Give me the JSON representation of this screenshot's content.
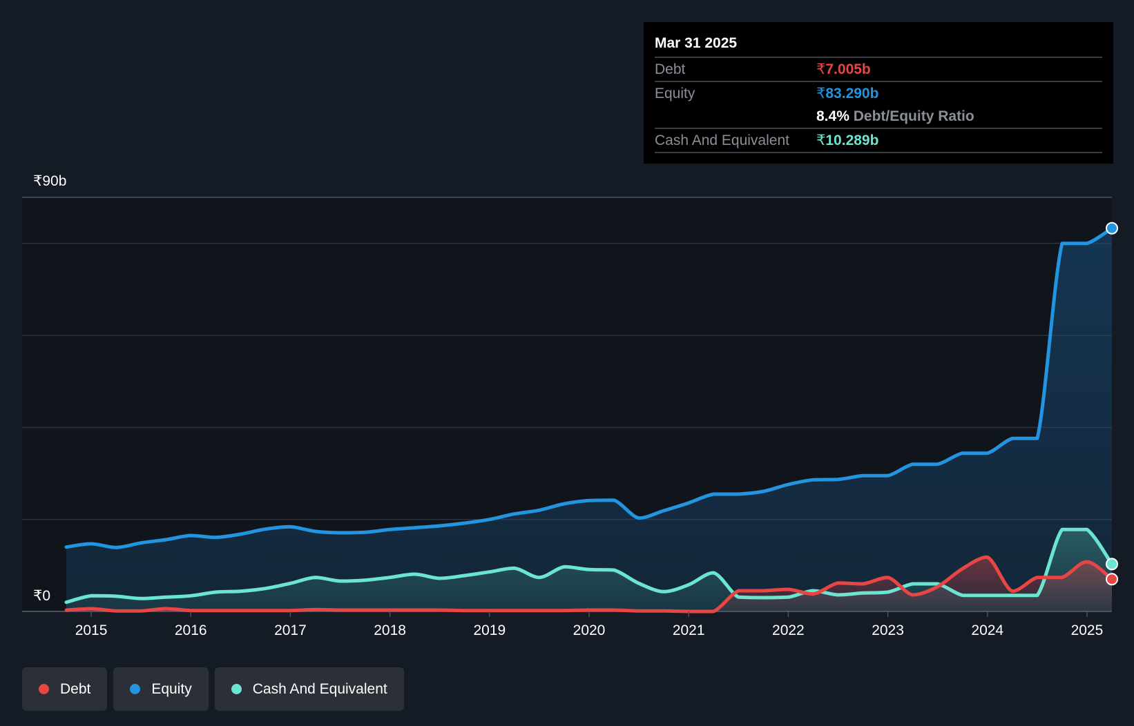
{
  "tooltip": {
    "date": "Mar 31 2025",
    "debt_label": "Debt",
    "debt_symbol": "₹",
    "debt_value": "7.005b",
    "equity_label": "Equity",
    "equity_symbol": "₹",
    "equity_value": "83.290b",
    "ratio_value": "8.4%",
    "ratio_label": "Debt/Equity Ratio",
    "cash_label": "Cash And Equivalent",
    "cash_symbol": "₹",
    "cash_value": "10.289b"
  },
  "legend": {
    "debt": "Debt",
    "equity": "Equity",
    "cash": "Cash And Equivalent"
  },
  "colors": {
    "debt": "#e84545",
    "equity": "#2394df",
    "cash": "#6ce5d0",
    "background": "#151b24",
    "grid": "#2e3540"
  },
  "chart_data": {
    "type": "area",
    "title": "",
    "xlabel": "",
    "ylabel": "",
    "y_axis_labels": {
      "top": "₹90b",
      "bottom": "₹0"
    },
    "ylim": [
      0,
      90
    ],
    "xlim": [
      2014.75,
      2025.25
    ],
    "x_ticks": [
      2015,
      2016,
      2017,
      2018,
      2019,
      2020,
      2021,
      2022,
      2023,
      2024,
      2025
    ],
    "x_tick_labels": [
      "2015",
      "2016",
      "2017",
      "2018",
      "2019",
      "2020",
      "2021",
      "2022",
      "2023",
      "2024",
      "2025"
    ],
    "series": [
      {
        "name": "Equity",
        "color_key": "equity",
        "x": [
          2014.75,
          2015.0,
          2015.25,
          2015.5,
          2015.75,
          2016.0,
          2016.25,
          2016.5,
          2016.75,
          2017.0,
          2017.25,
          2017.5,
          2017.75,
          2018.0,
          2018.25,
          2018.5,
          2018.75,
          2019.0,
          2019.25,
          2019.5,
          2019.75,
          2020.0,
          2020.25,
          2020.5,
          2020.75,
          2021.0,
          2021.25,
          2021.5,
          2021.75,
          2022.0,
          2022.25,
          2022.5,
          2022.75,
          2023.0,
          2023.25,
          2023.5,
          2023.75,
          2024.0,
          2024.25,
          2024.5,
          2024.75,
          2025.0,
          2025.25
        ],
        "values": [
          14.0,
          14.7,
          13.9,
          14.9,
          15.6,
          16.5,
          16.1,
          16.8,
          17.9,
          18.4,
          17.4,
          17.1,
          17.2,
          17.8,
          18.2,
          18.6,
          19.2,
          20.0,
          21.2,
          22.0,
          23.4,
          24.1,
          24.2,
          20.3,
          21.9,
          23.6,
          25.5,
          25.5,
          26.1,
          27.6,
          28.6,
          28.7,
          29.5,
          29.5,
          32.0,
          32.0,
          34.4,
          34.4,
          37.6,
          37.6,
          80.0,
          80.0,
          83.29
        ]
      },
      {
        "name": "Cash And Equivalent",
        "color_key": "cash",
        "x": [
          2014.75,
          2015.0,
          2015.25,
          2015.5,
          2015.75,
          2016.0,
          2016.25,
          2016.5,
          2016.75,
          2017.0,
          2017.25,
          2017.5,
          2017.75,
          2018.0,
          2018.25,
          2018.5,
          2018.75,
          2019.0,
          2019.25,
          2019.5,
          2019.75,
          2020.0,
          2020.25,
          2020.5,
          2020.75,
          2021.0,
          2021.25,
          2021.5,
          2021.75,
          2022.0,
          2022.25,
          2022.5,
          2022.75,
          2023.0,
          2023.25,
          2023.5,
          2023.75,
          2024.0,
          2024.25,
          2024.5,
          2024.75,
          2025.0,
          2025.25
        ],
        "values": [
          2.0,
          3.4,
          3.3,
          2.8,
          3.1,
          3.4,
          4.2,
          4.4,
          5.0,
          6.1,
          7.4,
          6.6,
          6.8,
          7.4,
          8.1,
          7.2,
          7.8,
          8.6,
          9.4,
          7.4,
          9.7,
          9.1,
          9.0,
          6.1,
          4.3,
          5.8,
          8.4,
          3.1,
          3.0,
          3.1,
          4.5,
          3.6,
          4.0,
          4.2,
          6.0,
          6.0,
          3.5,
          3.5,
          3.5,
          3.5,
          17.8,
          17.8,
          10.289
        ]
      },
      {
        "name": "Debt",
        "color_key": "debt",
        "x": [
          2014.75,
          2015.0,
          2015.25,
          2015.5,
          2015.75,
          2016.0,
          2016.25,
          2016.5,
          2016.75,
          2017.0,
          2017.25,
          2017.5,
          2017.75,
          2018.0,
          2018.25,
          2018.5,
          2018.75,
          2019.0,
          2019.25,
          2019.5,
          2019.75,
          2020.0,
          2020.25,
          2020.5,
          2020.75,
          2021.0,
          2021.25,
          2021.5,
          2021.75,
          2022.0,
          2022.25,
          2022.5,
          2022.75,
          2023.0,
          2023.25,
          2023.5,
          2023.75,
          2024.0,
          2024.25,
          2024.5,
          2024.75,
          2025.0,
          2025.25
        ],
        "values": [
          0.3,
          0.6,
          0.1,
          0.1,
          0.6,
          0.2,
          0.2,
          0.2,
          0.2,
          0.2,
          0.4,
          0.3,
          0.3,
          0.3,
          0.3,
          0.3,
          0.2,
          0.2,
          0.2,
          0.2,
          0.2,
          0.3,
          0.3,
          0.1,
          0.1,
          0.0,
          0.0,
          4.5,
          4.5,
          4.8,
          3.8,
          6.2,
          6.0,
          7.4,
          3.6,
          5.4,
          9.3,
          11.8,
          4.4,
          7.4,
          7.4,
          10.8,
          7.005
        ]
      }
    ]
  }
}
